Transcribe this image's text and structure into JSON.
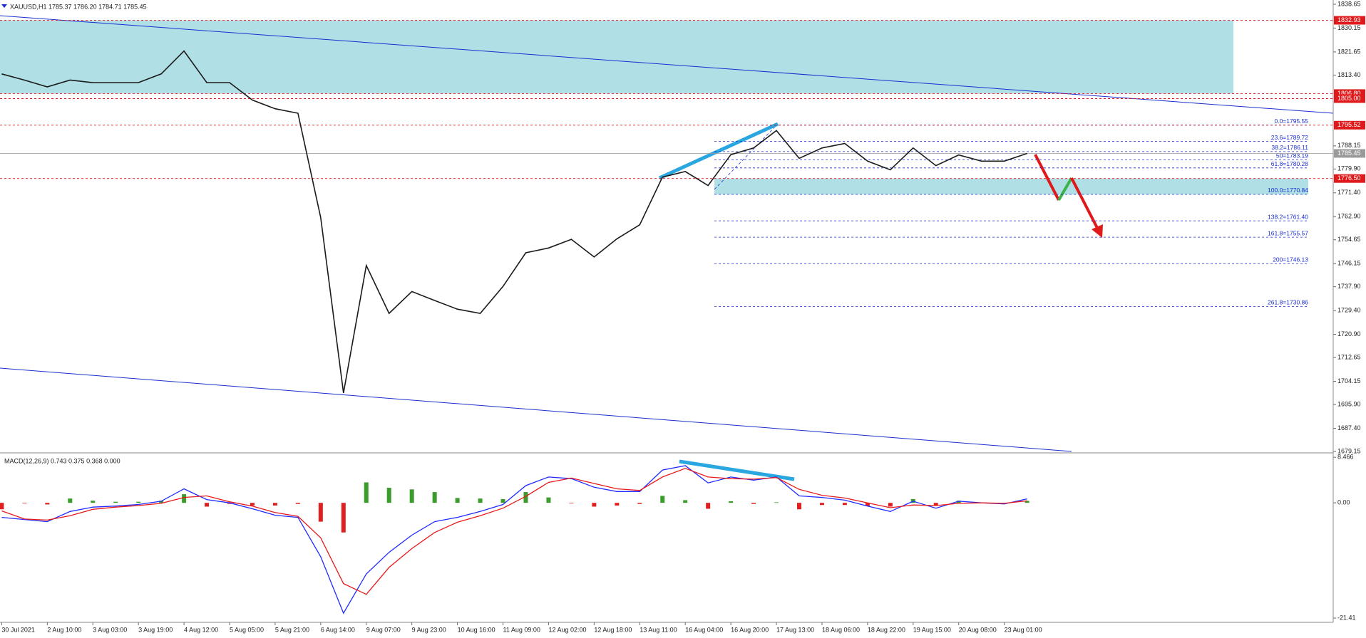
{
  "chart_data": [
    {
      "type": "line",
      "title": "XAUUSD,H1  1785.37 1786.20 1784.71 1785.45",
      "series": [
        {
          "color": "#1a1a1a",
          "values": [
            1813.8,
            1811.6,
            1809.2,
            1811.6,
            1810.7,
            1810.7,
            1810.7,
            1813.8,
            1822.0,
            1810.7,
            1810.7,
            1804.5,
            1801.4,
            1799.8,
            1762.6,
            1700.0,
            1745.5,
            1728.4,
            1736.2,
            1733.0,
            1729.9,
            1728.4,
            1738.0,
            1750.0,
            1751.7,
            1754.8,
            1748.5,
            1755.0,
            1760.0,
            1777.0,
            1779.0,
            1774.0,
            1785.0,
            1787.4,
            1793.6,
            1783.7,
            1787.4,
            1789.0,
            1782.7,
            1779.6,
            1787.4,
            1781.1,
            1784.9,
            1782.7,
            1782.7,
            1785.45
          ]
        }
      ],
      "ylim": [
        1679.15,
        1838.65
      ],
      "yticks": [
        1838.65,
        1830.15,
        1821.65,
        {
          "value": 1813.4,
          "label": "1813.40"
        },
        1788.15,
        {
          "value": 1779.9,
          "label": "1779.90"
        },
        {
          "value": 1771.4,
          "label": "1771.40"
        },
        {
          "value": 1762.9,
          "label": "1762.90"
        },
        1754.65,
        1746.15,
        {
          "value": 1737.9,
          "label": "1737.90"
        },
        {
          "value": 1729.4,
          "label": "1729.40"
        },
        {
          "value": 1720.9,
          "label": "1720.90"
        },
        1712.65,
        1704.15,
        {
          "value": 1695.9,
          "label": "1695.90"
        },
        {
          "value": 1687.4,
          "label": "1687.40"
        },
        1679.15
      ],
      "levels": [
        1832.93,
        {
          "value": 1806.8,
          "label": "1806.80"
        },
        {
          "value": 1805,
          "label": "1805.00"
        },
        1795.52,
        {
          "value": 1776.5,
          "label": "1776.50"
        }
      ],
      "level_color": "#e0191b",
      "current_price": 1785.45,
      "zones": [
        [
          1832.93,
          1806.8
        ],
        [
          1776.5,
          1770.84
        ]
      ],
      "zone_color": "#b0e0e6",
      "fib_levels": [
        {
          "value": 1795.55,
          "label": "0.0=1795.55"
        },
        {
          "value": 1789.72,
          "label": "23.6=1789.72"
        },
        {
          "value": 1786.11,
          "label": "38.2=1786.11"
        },
        {
          "value": 1783.19,
          "label": "50=1783.19"
        },
        {
          "value": 1780.28,
          "label": "61.8=1780.28"
        },
        {
          "value": 1770.84,
          "label": "100.0=1770.84"
        },
        {
          "value": 1761.4,
          "label": "138.2=1761.40"
        },
        {
          "value": 1755.57,
          "label": "161.8=1755.57"
        },
        {
          "value": 1746.13,
          "label": "200=1746.13"
        },
        {
          "value": 1730.86,
          "label": "261.8=1730.86"
        }
      ],
      "fib_color": "#1a2ecf"
    },
    {
      "type": "line",
      "title": "MACD(12,26,9) 0.743 0.375 0.368 0.000",
      "categories": [
        "30 Jul 2021",
        null,
        "2 Aug 10:00",
        null,
        "3 Aug 03:00",
        null,
        "3 Aug 19:00",
        null,
        "4 Aug 12:00",
        null,
        "5 Aug 05:00",
        null,
        "5 Aug 21:00",
        null,
        "6 Aug 14:00",
        null,
        "9 Aug 07:00",
        null,
        "9 Aug 23:00",
        null,
        "10 Aug 16:00",
        null,
        "11 Aug 09:00",
        null,
        "12 Aug 02:00",
        null,
        "12 Aug 18:00",
        null,
        "13 Aug 11:00",
        null,
        "16 Aug 04:00",
        null,
        "16 Aug 20:00",
        null,
        "17 Aug 13:00",
        null,
        "18 Aug 06:00",
        null,
        "18 Aug 22:00",
        null,
        "19 Aug 15:00",
        null,
        "20 Aug 08:00",
        null,
        "23 Aug 01:00",
        null
      ],
      "series": [
        {
          "color": "#1f2bff",
          "values": [
            -2.7,
            -3.1,
            -3.5,
            -1.6,
            -0.8,
            -0.6,
            -0.3,
            0.3,
            2.6,
            0.6,
            0,
            -1.1,
            -2.3,
            -2.7,
            -10,
            -20.5,
            -13.2,
            -9.2,
            -6,
            -3.5,
            -2.7,
            -1.6,
            -0.3,
            3.2,
            4.8,
            4.5,
            2.9,
            2.1,
            2.1,
            6.1,
            6.9,
            3.7,
            4.8,
            4.2,
            4.8,
            1.3,
            1,
            0.5,
            -0.6,
            -1.6,
            0.3,
            -1,
            0.3,
            0,
            -0.2,
            0.743
          ]
        },
        {
          "color": "#e8191b",
          "values": [
            -1.5,
            -3.0,
            -3.2,
            -2.4,
            -1.2,
            -0.8,
            -0.5,
            -0.1,
            1.0,
            1.3,
            0.2,
            -0.6,
            -1.8,
            -2.5,
            -6.5,
            -15,
            -17,
            -12,
            -8.5,
            -5.5,
            -3.6,
            -2.4,
            -1.0,
            1.2,
            3.8,
            4.6,
            3.6,
            2.6,
            2.3,
            4.8,
            6.4,
            4.8,
            4.5,
            4.4,
            4.7,
            2.5,
            1.4,
            0.9,
            0.0,
            -0.9,
            -0.4,
            -0.5,
            -0.1,
            0.0,
            -0.1,
            0.375
          ]
        }
      ],
      "histogram": {
        "up_color": "#3a9c2a",
        "down_color": "#e02020",
        "values": [
          -1.2,
          -0.1,
          -0.3,
          0.8,
          0.4,
          0.2,
          0.2,
          0.4,
          1.6,
          -0.7,
          -0.2,
          -0.5,
          -0.5,
          -0.2,
          -3.5,
          -5.5,
          3.8,
          2.8,
          2.5,
          2.0,
          0.9,
          0.8,
          0.7,
          2.0,
          1.0,
          -0.1,
          -0.7,
          -0.5,
          -0.2,
          1.3,
          0.5,
          -1.1,
          0.3,
          -0.2,
          0.1,
          -1.2,
          -0.4,
          -0.4,
          -0.6,
          -0.7,
          0.7,
          -0.5,
          0.4,
          0.0,
          -0.1,
          0.368
        ]
      },
      "ylim": [
        -22.2,
        9.02
      ],
      "yticks": [
        8.466,
        {
          "value": 0,
          "label": "0.00"
        },
        -21.41
      ]
    }
  ]
}
